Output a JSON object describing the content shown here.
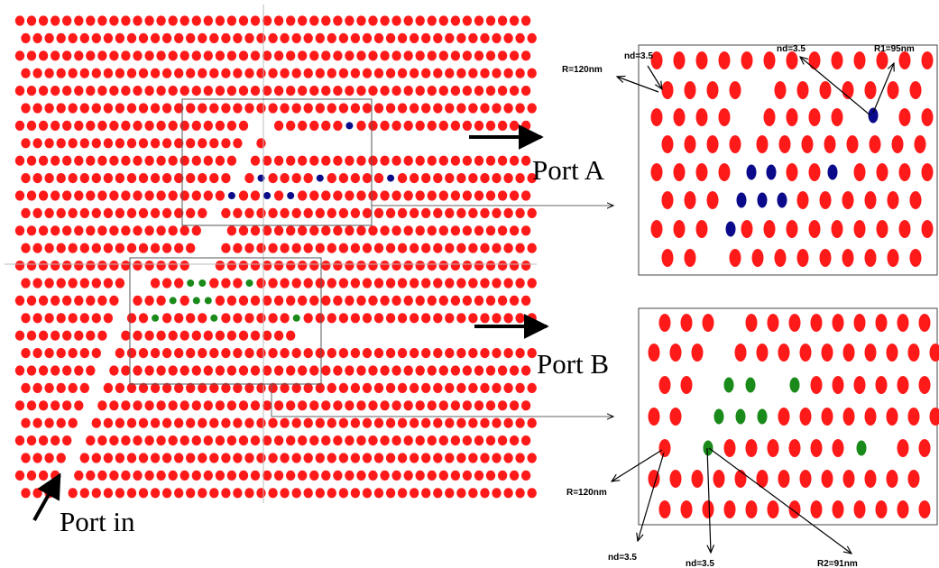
{
  "colors": {
    "rod": "#ff1a1a",
    "defect_a": "#0a0a8a",
    "defect_b": "#1a8a1a",
    "line": "#000000",
    "box": "#555555"
  },
  "ports": {
    "in": "Port in",
    "a": "Port A",
    "b": "Port B"
  },
  "annotations_a": {
    "nd_left": "nd=3.5",
    "nd_right": "nd=3.5",
    "r1": "R1=95nm",
    "r": "R=120nm"
  },
  "annotations_b": {
    "r": "R=120nm",
    "nd_left": "nd=3.5",
    "nd_mid": "nd=3.5",
    "r2": "R2=91nm"
  }
}
